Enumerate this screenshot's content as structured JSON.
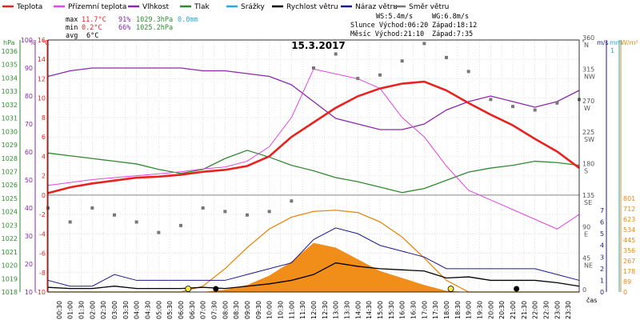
{
  "chart_data": {
    "type": "line",
    "title": "15.3.2017",
    "legend": [
      {
        "label": "Teplota",
        "color": "#e8231f"
      },
      {
        "label": "Přízemní teplota",
        "color": "#e146e0"
      },
      {
        "label": "Vlhkost",
        "color": "#8b29ad"
      },
      {
        "label": "Tlak",
        "color": "#2f8a2f"
      },
      {
        "label": "Srážky",
        "color": "#22a9d8"
      },
      {
        "label": "Rychlost větru",
        "color": "#000000"
      },
      {
        "label": "Náraz větru",
        "color": "#1a1a8c"
      },
      {
        "label": "Směr větru",
        "color": "#777777"
      }
    ],
    "stats": {
      "max": {
        "label": "max",
        "temp": "11.7°C",
        "hum": "91%",
        "press": "1029.3hPa",
        "rain": "0.0mm"
      },
      "min": {
        "label": "min",
        "temp": "0.2°C",
        "hum": "66%",
        "press": "1025.2hPa"
      },
      "avg": {
        "label": "avg",
        "temp": "6°C"
      }
    },
    "info": {
      "ws": "WS:5.4m/s",
      "wg": "WG:6.8m/s",
      "sun": "Slunce Východ:06:20",
      "sunset": "Západ:18:12",
      "moon": "Měsíc Východ:21:10",
      "moonset": "Západ:7:35"
    },
    "axes": {
      "hpa_label": "hPa",
      "pct_label": "%",
      "c_label": "°C",
      "deg_label": "°",
      "ms_label": "m/s",
      "mm_label": "mm",
      "wm2_label": "W/m²",
      "time_label": "čas",
      "hpa_ticks": [
        "1036",
        "1035",
        "1034",
        "1033",
        "1032",
        "1031",
        "1030",
        "1029",
        "1028",
        "1027",
        "1026",
        "1025",
        "1024",
        "1023",
        "1022",
        "1021",
        "1020",
        "1019",
        "1018"
      ],
      "pct_ticks": [
        "100",
        "90",
        "80",
        "70",
        "60",
        "50",
        "40",
        "30",
        "20",
        "10"
      ],
      "c_ticks": [
        "16",
        "14",
        "12",
        "10",
        "8",
        "6",
        "4",
        "2",
        "0",
        "-2",
        "-4",
        "-6",
        "-8",
        "-10"
      ],
      "dir_ticks": [
        {
          "deg": "360",
          "d": "N"
        },
        {
          "deg": "315",
          "d": "NW"
        },
        {
          "deg": "270",
          "d": "W"
        },
        {
          "deg": "225",
          "d": "SW"
        },
        {
          "deg": "180",
          "d": "S"
        },
        {
          "deg": "135",
          "d": "SE"
        },
        {
          "deg": "90",
          "d": "E"
        },
        {
          "deg": "45",
          "d": "NE"
        },
        {
          "deg": "0",
          "d": ""
        }
      ],
      "ms_ticks": [
        "7",
        "6",
        "5",
        "4",
        "3",
        "2",
        "1",
        "0"
      ],
      "mm_ticks": [
        "1"
      ],
      "wm2_ticks": [
        "801",
        "712",
        "623",
        "534",
        "445",
        "356",
        "267",
        "178",
        "89",
        "0"
      ],
      "time_ticks": [
        "00:30",
        "01:00",
        "01:30",
        "02:00",
        "02:30",
        "03:00",
        "03:30",
        "04:00",
        "04:30",
        "05:00",
        "05:30",
        "06:00",
        "06:30",
        "07:00",
        "07:30",
        "08:00",
        "08:30",
        "09:00",
        "09:30",
        "10:00",
        "10:30",
        "11:00",
        "11:30",
        "12:00",
        "12:30",
        "13:00",
        "13:30",
        "14:00",
        "14:30",
        "15:00",
        "15:30",
        "16:00",
        "16:30",
        "17:00",
        "17:30",
        "18:00",
        "18:30",
        "19:00",
        "19:30",
        "20:00",
        "20:30",
        "21:00",
        "21:30",
        "22:00",
        "22:30",
        "23:00",
        "23:30"
      ]
    },
    "hours": [
      0,
      1,
      2,
      3,
      4,
      5,
      6,
      7,
      8,
      9,
      10,
      11,
      12,
      13,
      14,
      15,
      16,
      17,
      18,
      19,
      20,
      21,
      22,
      23,
      24
    ],
    "temperature_c": [
      0.2,
      0.8,
      1.2,
      1.5,
      1.8,
      1.9,
      2.1,
      2.4,
      2.6,
      3.0,
      4.0,
      6.0,
      7.5,
      9.0,
      10.2,
      11.0,
      11.5,
      11.7,
      10.8,
      9.5,
      8.3,
      7.2,
      5.8,
      4.5,
      2.8
    ],
    "ground_temp_c": [
      1.0,
      1.3,
      1.6,
      1.8,
      2.0,
      2.2,
      2.4,
      2.7,
      2.9,
      3.5,
      5.0,
      8.0,
      13.0,
      12.5,
      12.0,
      11.0,
      8.0,
      6.0,
      3.0,
      0.5,
      -0.5,
      -1.5,
      -2.5,
      -3.5,
      -2.0
    ],
    "humidity_pct": [
      87,
      89,
      90,
      90,
      90,
      90,
      90,
      89,
      89,
      88,
      87,
      84,
      78,
      72,
      70,
      68,
      68,
      70,
      75,
      78,
      80,
      78,
      76,
      78,
      82
    ],
    "pressure_hpa": [
      1028.2,
      1028.0,
      1027.8,
      1027.6,
      1027.4,
      1027.0,
      1026.7,
      1027.0,
      1027.8,
      1028.4,
      1027.9,
      1027.3,
      1026.9,
      1026.4,
      1026.1,
      1025.7,
      1025.3,
      1025.6,
      1026.2,
      1026.8,
      1027.1,
      1027.3,
      1027.6,
      1027.5,
      1027.3
    ],
    "wind_speed_ms": [
      0.4,
      0.3,
      0.3,
      0.5,
      0.3,
      0.3,
      0.3,
      0.4,
      0.3,
      0.5,
      0.7,
      1.0,
      1.5,
      2.5,
      2.2,
      2.0,
      1.9,
      1.8,
      1.2,
      1.3,
      1.0,
      1.0,
      1.0,
      0.8,
      0.5
    ],
    "wind_gust_ms": [
      1.0,
      0.5,
      0.5,
      1.5,
      1.0,
      1.0,
      1.0,
      1.0,
      1.0,
      1.5,
      2.0,
      2.5,
      4.5,
      5.5,
      5.0,
      4.0,
      3.5,
      3.0,
      2.0,
      2.0,
      2.0,
      2.0,
      2.0,
      1.5,
      1.0
    ],
    "wind_dir_deg": [
      120,
      100,
      120,
      110,
      100,
      85,
      95,
      120,
      115,
      110,
      115,
      130,
      320,
      340,
      305,
      310,
      330,
      355,
      335,
      315,
      275,
      265,
      260,
      270,
      275
    ],
    "solar_wm2": [
      0,
      0,
      0,
      0,
      0,
      0,
      0,
      0,
      20,
      60,
      140,
      260,
      420,
      380,
      280,
      180,
      120,
      60,
      10,
      0,
      0,
      0,
      0,
      0,
      0
    ],
    "solar_theoretical_max_wm2": [
      0,
      0,
      0,
      0,
      0,
      0,
      0,
      50,
      200,
      380,
      540,
      640,
      690,
      700,
      680,
      600,
      470,
      290,
      100,
      0,
      0,
      0,
      0,
      0,
      0
    ]
  }
}
